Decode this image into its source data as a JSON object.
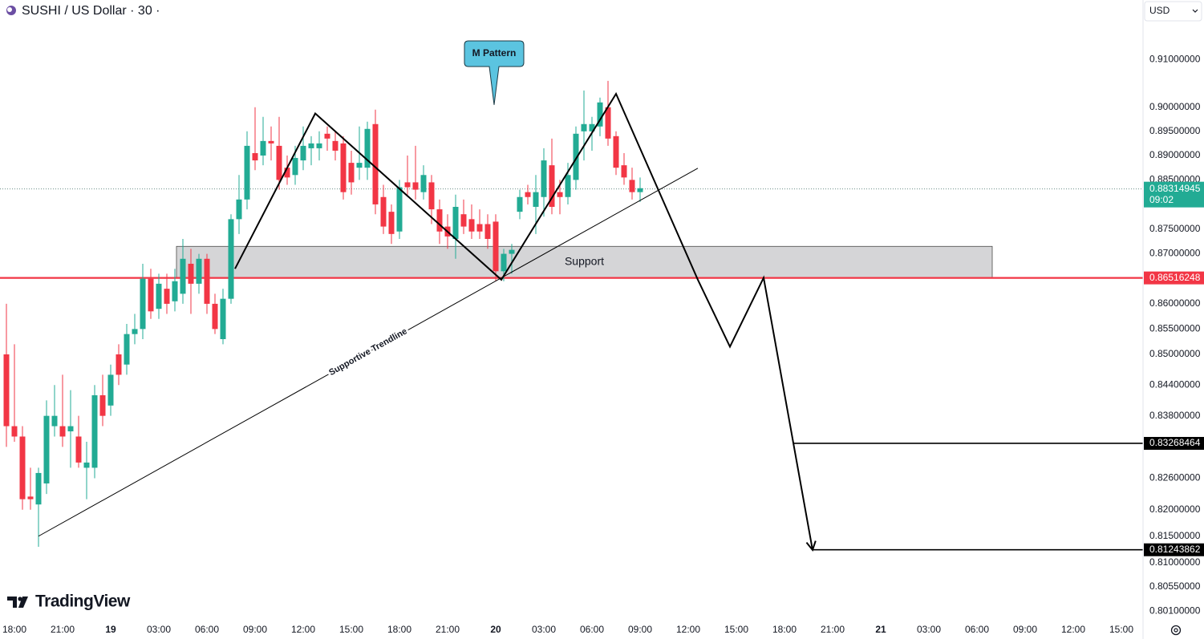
{
  "chart_data": {
    "type": "candlestick",
    "title": "SUSHI / US Dollar · 30 ·",
    "currency": "USD",
    "brand": "TradingView",
    "up_color": "#22ab94",
    "down_color": "#f23645",
    "log": true,
    "grid": false,
    "x": [
      -0.5,
      0,
      0.5,
      1,
      1.5,
      2,
      2.5,
      3,
      3.5,
      4,
      4.5,
      5,
      5.5,
      6,
      6.5,
      7,
      7.5,
      8,
      8.5,
      9,
      9.5,
      10,
      10.5,
      11,
      11.5,
      12,
      12.5,
      13,
      13.5,
      14,
      14.5,
      15,
      15.5,
      16,
      16.5,
      17,
      17.5,
      18,
      18.5,
      19,
      19.5,
      20,
      20.5,
      21,
      21.5,
      22,
      22.5,
      23,
      23.5,
      24,
      24.5,
      25,
      25.5,
      26,
      26.5,
      27,
      27.5,
      28,
      28.5,
      29,
      29.5,
      30,
      30.5,
      31,
      31.5,
      32,
      32.5,
      33,
      33.5,
      34,
      34.5,
      35,
      35.5,
      36,
      36.5,
      37,
      37.5,
      38,
      38.5,
      39
    ],
    "open": [
      0.85,
      0.836,
      0.834,
      0.8225,
      0.821,
      0.825,
      0.836,
      0.836,
      0.835,
      0.834,
      0.828,
      0.828,
      0.842,
      0.84,
      0.85,
      0.848,
      0.854,
      0.855,
      0.865,
      0.859,
      0.863,
      0.8605,
      0.862,
      0.868,
      0.864,
      0.869,
      0.86,
      0.853,
      0.861,
      0.877,
      0.881,
      0.8905,
      0.89,
      0.893,
      0.892,
      0.8875,
      0.886,
      0.889,
      0.8915,
      0.8915,
      0.8945,
      0.893,
      0.8925,
      0.8885,
      0.8875,
      0.8875,
      0.8965,
      0.8815,
      0.8785,
      0.8745,
      0.8845,
      0.8845,
      0.8825,
      0.8845,
      0.879,
      0.8755,
      0.873,
      0.878,
      0.877,
      0.876,
      0.876,
      0.8765,
      0.8665,
      0.87,
      0.8785,
      0.8825,
      0.8795,
      0.8815,
      0.888,
      0.8825,
      0.8815,
      0.885,
      0.895,
      0.895,
      0.896,
      0.9,
      0.894,
      0.888,
      0.885,
      0.8825
    ],
    "high": [
      0.86,
      0.852,
      0.836,
      0.828,
      0.828,
      0.841,
      0.844,
      0.846,
      0.843,
      0.838,
      0.833,
      0.844,
      0.846,
      0.848,
      0.852,
      0.856,
      0.858,
      0.868,
      0.867,
      0.866,
      0.866,
      0.867,
      0.873,
      0.871,
      0.87,
      0.87,
      0.862,
      0.863,
      0.878,
      0.886,
      0.895,
      0.9,
      0.898,
      0.896,
      0.898,
      0.89,
      0.892,
      0.896,
      0.894,
      0.895,
      0.896,
      0.895,
      0.894,
      0.891,
      0.896,
      0.897,
      0.8995,
      0.884,
      0.88,
      0.885,
      0.89,
      0.892,
      0.888,
      0.886,
      0.881,
      0.878,
      0.882,
      0.881,
      0.88,
      0.879,
      0.878,
      0.878,
      0.871,
      0.872,
      0.883,
      0.884,
      0.886,
      0.8915,
      0.8935,
      0.885,
      0.8885,
      0.896,
      0.9035,
      0.898,
      0.902,
      0.9055,
      0.895,
      0.8905,
      0.8875,
      0.8855
    ],
    "low": [
      0.832,
      0.833,
      0.82,
      0.82,
      0.813,
      0.823,
      0.834,
      0.832,
      0.828,
      0.828,
      0.822,
      0.826,
      0.836,
      0.838,
      0.844,
      0.846,
      0.852,
      0.853,
      0.857,
      0.857,
      0.858,
      0.8585,
      0.86,
      0.858,
      0.862,
      0.858,
      0.854,
      0.852,
      0.86,
      0.874,
      0.879,
      0.887,
      0.888,
      0.889,
      0.883,
      0.884,
      0.884,
      0.887,
      0.888,
      0.889,
      0.891,
      0.889,
      0.881,
      0.882,
      0.885,
      0.885,
      0.878,
      0.874,
      0.872,
      0.873,
      0.882,
      0.881,
      0.881,
      0.876,
      0.872,
      0.871,
      0.869,
      0.874,
      0.873,
      0.873,
      0.871,
      0.8645,
      0.8645,
      0.866,
      0.877,
      0.88,
      0.874,
      0.8775,
      0.878,
      0.878,
      0.88,
      0.883,
      0.889,
      0.891,
      0.894,
      0.892,
      0.886,
      0.884,
      0.881,
      0.8805
    ],
    "close": [
      0.836,
      0.834,
      0.822,
      0.822,
      0.827,
      0.838,
      0.838,
      0.834,
      0.836,
      0.829,
      0.829,
      0.842,
      0.838,
      0.846,
      0.846,
      0.854,
      0.855,
      0.865,
      0.8585,
      0.864,
      0.86,
      0.8645,
      0.869,
      0.864,
      0.869,
      0.86,
      0.855,
      0.861,
      0.877,
      0.881,
      0.892,
      0.889,
      0.893,
      0.8925,
      0.885,
      0.8855,
      0.8895,
      0.892,
      0.8925,
      0.8925,
      0.8935,
      0.891,
      0.8825,
      0.8845,
      0.8885,
      0.8955,
      0.88,
      0.8755,
      0.874,
      0.8835,
      0.8835,
      0.883,
      0.886,
      0.879,
      0.8745,
      0.8735,
      0.8795,
      0.8755,
      0.8745,
      0.8745,
      0.873,
      0.8665,
      0.87,
      0.8708,
      0.8815,
      0.8815,
      0.8825,
      0.889,
      0.8795,
      0.8815,
      0.886,
      0.8945,
      0.8965,
      0.8965,
      0.901,
      0.8935,
      0.8875,
      0.8855,
      0.8825,
      0.8833
    ],
    "xlim": [
      -0.9,
      70.35
    ],
    "xticks": [
      {
        "value": 0,
        "label": "18:00"
      },
      {
        "value": 3,
        "label": "21:00"
      },
      {
        "value": 6,
        "label": "19"
      },
      {
        "value": 9,
        "label": "03:00"
      },
      {
        "value": 12,
        "label": "06:00"
      },
      {
        "value": 15,
        "label": "09:00"
      },
      {
        "value": 18,
        "label": "12:00"
      },
      {
        "value": 21,
        "label": "15:00"
      },
      {
        "value": 24,
        "label": "18:00"
      },
      {
        "value": 27,
        "label": "21:00"
      },
      {
        "value": 30,
        "label": "20"
      },
      {
        "value": 33,
        "label": "03:00"
      },
      {
        "value": 36,
        "label": "06:00"
      },
      {
        "value": 39,
        "label": "09:00"
      },
      {
        "value": 42,
        "label": "12:00"
      },
      {
        "value": 45,
        "label": "15:00"
      },
      {
        "value": 48,
        "label": "18:00"
      },
      {
        "value": 51,
        "label": "21:00"
      },
      {
        "value": 54,
        "label": "21"
      },
      {
        "value": 57,
        "label": "03:00"
      },
      {
        "value": 60,
        "label": "06:00"
      },
      {
        "value": 63,
        "label": "09:00"
      },
      {
        "value": 66,
        "label": "12:00"
      },
      {
        "value": 69,
        "label": "15:00"
      }
    ],
    "ylim": [
      0.7991,
      0.9226
    ],
    "yticks": [
      {
        "value": 0.91,
        "label": "0.91000000"
      },
      {
        "value": 0.9,
        "label": "0.90000000"
      },
      {
        "value": 0.895,
        "label": "0.89500000"
      },
      {
        "value": 0.89,
        "label": "0.89000000"
      },
      {
        "value": 0.885,
        "label": "0.88500000"
      },
      {
        "value": 0.875,
        "label": "0.87500000"
      },
      {
        "value": 0.87,
        "label": "0.87000000"
      },
      {
        "value": 0.86,
        "label": "0.86000000"
      },
      {
        "value": 0.855,
        "label": "0.85500000"
      },
      {
        "value": 0.85,
        "label": "0.85000000"
      },
      {
        "value": 0.844,
        "label": "0.84400000"
      },
      {
        "value": 0.838,
        "label": "0.83800000"
      },
      {
        "value": 0.826,
        "label": "0.82600000"
      },
      {
        "value": 0.82,
        "label": "0.82000000"
      },
      {
        "value": 0.815,
        "label": "0.81500000"
      },
      {
        "value": 0.81,
        "label": "0.81000000"
      },
      {
        "value": 0.8055,
        "label": "0.80550000"
      },
      {
        "value": 0.801,
        "label": "0.80100000"
      }
    ],
    "price_lines": [
      {
        "value": 0.88314945,
        "color": "#22ab94",
        "countdown": "09:02",
        "dash": "dotted"
      },
      {
        "value": 0.86516248,
        "color": "#f23645"
      },
      {
        "value": 0.83268464,
        "color": "#000000",
        "x_start": 48.6
      },
      {
        "value": 0.81243862,
        "color": "#000000",
        "x_start": 49.75
      }
    ],
    "zones": [
      {
        "label": "Support",
        "x": [
          10.1,
          60.95
        ],
        "y": [
          0.8652,
          0.8715
        ]
      }
    ],
    "annotations": [
      {
        "type": "polyline",
        "arrow": true,
        "x": [
          13.75,
          18.75,
          30.35,
          37.5,
          42.6,
          44.6,
          46.7,
          49.75
        ],
        "y": [
          0.867,
          0.8987,
          0.8648,
          0.9028,
          0.8648,
          0.8515,
          0.8652,
          0.8124
        ]
      },
      {
        "type": "line",
        "label": "Supportive Trendline",
        "x": [
          1.5,
          42.6
        ],
        "y": [
          0.815,
          0.8874
        ]
      },
      {
        "type": "callout",
        "label": "M Pattern",
        "x": 29.9,
        "y": 0.9005
      }
    ]
  }
}
